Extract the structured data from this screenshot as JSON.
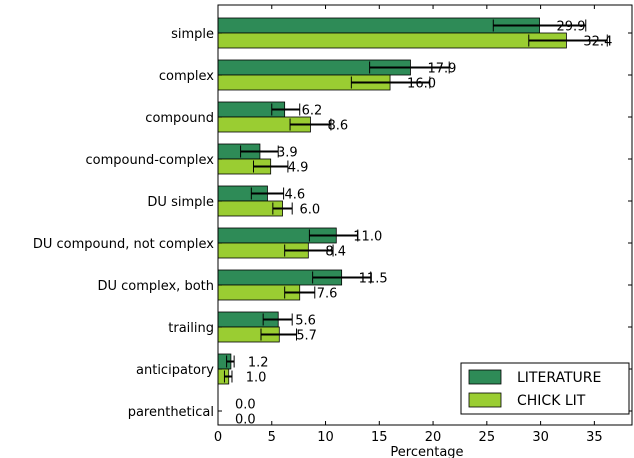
{
  "chart_data": {
    "type": "bar",
    "orientation": "horizontal",
    "categories": [
      "simple",
      "complex",
      "compound",
      "compound-complex",
      "DU simple",
      "DU compound, not complex",
      "DU complex, both",
      "trailing",
      "anticipatory",
      "parenthetical"
    ],
    "series": [
      {
        "name": "LITERATURE",
        "color": "#2e8b57",
        "values": [
          29.9,
          17.9,
          6.2,
          3.9,
          4.6,
          11.0,
          11.5,
          5.6,
          1.2,
          0.0
        ],
        "labels": [
          "29.9",
          "17.9",
          "6.2",
          "3.9",
          "4.6",
          "11.0",
          "11.5",
          "5.6",
          "1.2",
          "0.0"
        ],
        "err_low": [
          25.6,
          14.1,
          5.0,
          2.1,
          3.1,
          8.5,
          8.8,
          4.2,
          0.8,
          0.0
        ],
        "err_high": [
          34.2,
          21.5,
          7.6,
          5.6,
          6.1,
          13.0,
          14.2,
          6.9,
          1.5,
          0.0
        ]
      },
      {
        "name": "CHICK LIT",
        "color": "#9acd32",
        "values": [
          32.4,
          16.0,
          8.6,
          4.9,
          6.0,
          8.4,
          7.6,
          5.7,
          1.0,
          0.0
        ],
        "labels": [
          "32.4",
          "16.0",
          "8.6",
          "4.9",
          "6.0",
          "8.4",
          "7.6",
          "5.7",
          "1.0",
          "0.0"
        ],
        "err_low": [
          28.9,
          12.4,
          6.7,
          3.3,
          5.1,
          6.2,
          6.2,
          4.0,
          0.6,
          0.0
        ],
        "err_high": [
          36.2,
          19.7,
          10.5,
          6.5,
          6.9,
          10.7,
          9.0,
          7.3,
          1.3,
          0.0
        ]
      }
    ],
    "xlabel": "Percentage",
    "ylabel": "",
    "title": "",
    "xlim": [
      0,
      38.5
    ],
    "xticks": [
      0,
      5,
      10,
      15,
      20,
      25,
      30,
      35
    ],
    "xtick_labels": [
      "0",
      "5",
      "10",
      "15",
      "20",
      "25",
      "30",
      "35"
    ],
    "grid": false,
    "legend_position": "bottom-right"
  }
}
